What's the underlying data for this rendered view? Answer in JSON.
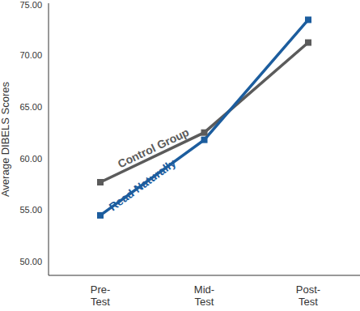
{
  "chart_data": {
    "type": "line",
    "y_label": "Average DIBELS Scores",
    "categories": [
      "Pre-Test",
      "Mid-Test",
      "Post-Test"
    ],
    "series": [
      {
        "name": "Control Group",
        "color": "#5b5b5b",
        "marker": "square",
        "values": [
          57.7,
          62.5,
          71.2
        ]
      },
      {
        "name": "Read Naturally",
        "color": "#1c5d9e",
        "marker": "square",
        "values": [
          54.5,
          61.8,
          73.4
        ]
      }
    ],
    "ylim": [
      48.7,
      75
    ],
    "yticks": [
      {
        "value": 50,
        "label": "50.00"
      },
      {
        "value": 55,
        "label": "55.00"
      },
      {
        "value": 60,
        "label": "60.00"
      },
      {
        "value": 65,
        "label": "65.00"
      },
      {
        "value": 70,
        "label": "70.00"
      },
      {
        "value": 75,
        "label": "75.00"
      }
    ],
    "grid": false
  }
}
